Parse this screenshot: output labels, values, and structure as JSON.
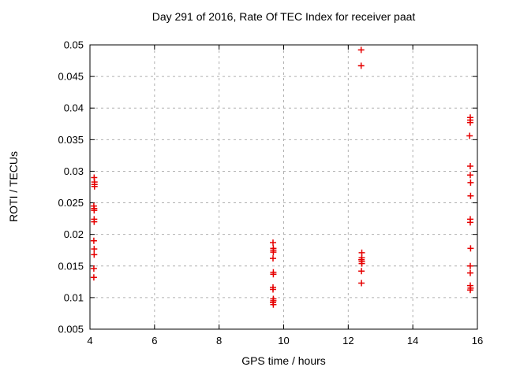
{
  "chart_data": {
    "type": "scatter",
    "title": "Day 291 of 2016, Rate Of TEC Index for receiver paat",
    "xlabel": "GPS time / hours",
    "ylabel": "ROTI / TECUs",
    "xlim": [
      4,
      16
    ],
    "ylim": [
      0.005,
      0.05
    ],
    "xticks": [
      4,
      6,
      8,
      10,
      12,
      14,
      16
    ],
    "xtick_labels": [
      "4",
      "6",
      "8",
      "10",
      "12",
      "14",
      "16"
    ],
    "yticks": [
      0.005,
      0.01,
      0.015,
      0.02,
      0.025,
      0.03,
      0.035,
      0.04,
      0.045,
      0.05
    ],
    "ytick_labels": [
      "0.005",
      "0.01",
      "0.015",
      "0.02",
      "0.025",
      "0.03",
      "0.035",
      "0.04",
      "0.045",
      "0.05"
    ],
    "grid": true,
    "legend": "none",
    "marker": "plus",
    "colors": {
      "marker": "#e60000",
      "grid": "#b0b0b0",
      "axis": "#000000",
      "background": "#ffffff"
    },
    "series": [
      {
        "name": "ROTI",
        "points": [
          [
            4.13,
            0.029
          ],
          [
            4.14,
            0.0283
          ],
          [
            4.14,
            0.0279
          ],
          [
            4.14,
            0.0276
          ],
          [
            4.12,
            0.0245
          ],
          [
            4.13,
            0.0241
          ],
          [
            4.13,
            0.0238
          ],
          [
            4.13,
            0.0224
          ],
          [
            4.13,
            0.022
          ],
          [
            4.12,
            0.019
          ],
          [
            4.13,
            0.0177
          ],
          [
            4.13,
            0.0168
          ],
          [
            4.12,
            0.0146
          ],
          [
            4.12,
            0.0132
          ],
          [
            9.67,
            0.0187
          ],
          [
            9.68,
            0.0178
          ],
          [
            9.68,
            0.0175
          ],
          [
            9.68,
            0.0172
          ],
          [
            9.67,
            0.0162
          ],
          [
            9.68,
            0.014
          ],
          [
            9.68,
            0.0137
          ],
          [
            9.67,
            0.0116
          ],
          [
            9.67,
            0.0113
          ],
          [
            9.68,
            0.0098
          ],
          [
            9.68,
            0.0095
          ],
          [
            9.67,
            0.0092
          ],
          [
            9.68,
            0.0089
          ],
          [
            12.4,
            0.0492
          ],
          [
            12.4,
            0.0467
          ],
          [
            12.42,
            0.0171
          ],
          [
            12.42,
            0.0163
          ],
          [
            12.41,
            0.016
          ],
          [
            12.42,
            0.0157
          ],
          [
            12.42,
            0.0154
          ],
          [
            12.41,
            0.0142
          ],
          [
            12.41,
            0.0123
          ],
          [
            15.78,
            0.0385
          ],
          [
            15.78,
            0.0381
          ],
          [
            15.78,
            0.0377
          ],
          [
            15.76,
            0.0356
          ],
          [
            15.78,
            0.0308
          ],
          [
            15.78,
            0.0294
          ],
          [
            15.79,
            0.0282
          ],
          [
            15.79,
            0.0261
          ],
          [
            15.78,
            0.0224
          ],
          [
            15.78,
            0.0219
          ],
          [
            15.79,
            0.0178
          ],
          [
            15.78,
            0.015
          ],
          [
            15.78,
            0.0139
          ],
          [
            15.78,
            0.0119
          ],
          [
            15.79,
            0.0115
          ],
          [
            15.78,
            0.0112
          ]
        ]
      }
    ]
  }
}
